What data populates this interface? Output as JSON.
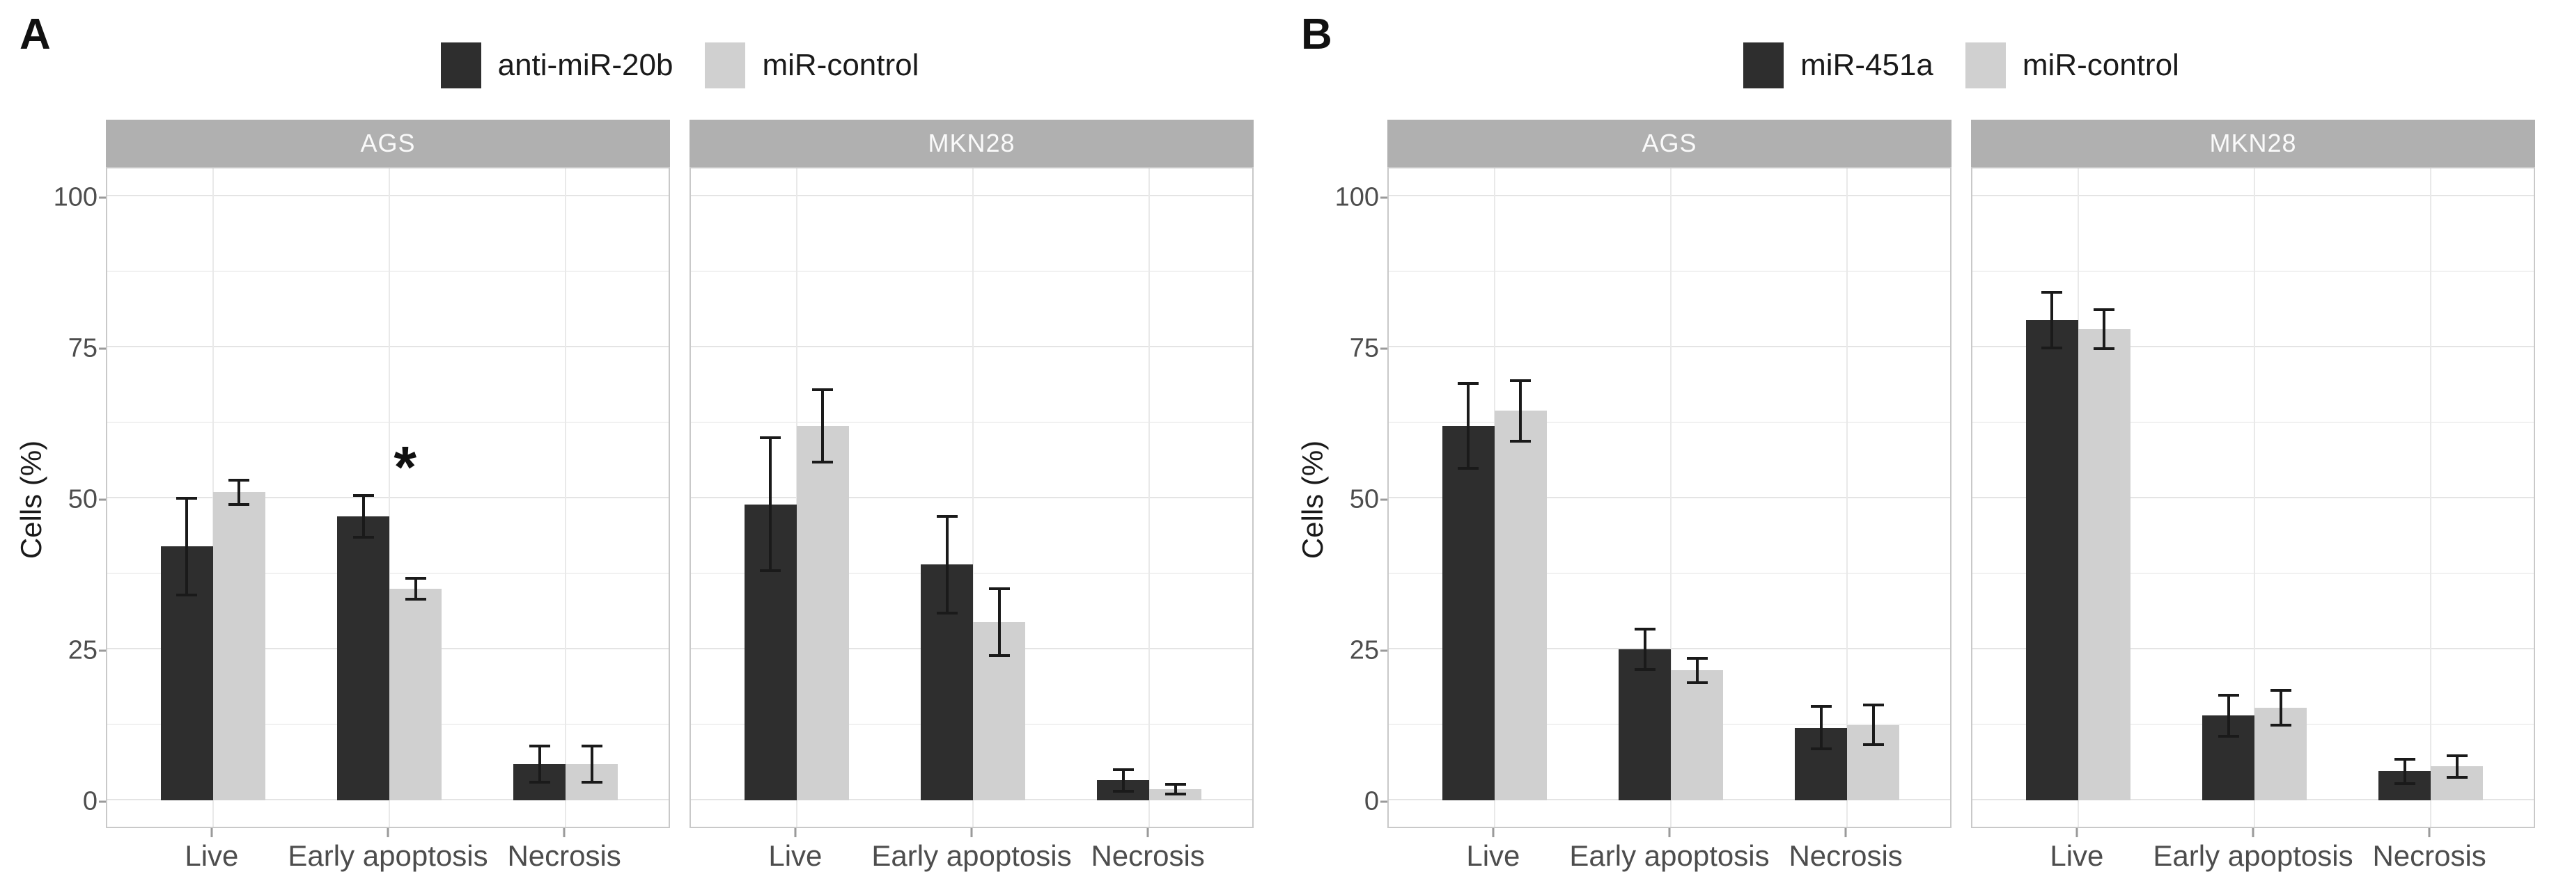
{
  "style": {
    "dark_fill": "#2e2e2e",
    "light_fill": "#d0d0d0",
    "strip_bg": "#b0b0b0",
    "strip_text": "#fafafa",
    "grid_major": "#e4e4e4",
    "grid_minor": "#f1f1f1",
    "panel_border": "#c9c9c9",
    "axis_text": "#4d4d4d",
    "error_color": "#1a1a1a",
    "background": "#ffffff"
  },
  "chart_data": [
    {
      "type": "bar",
      "panel_label": "A",
      "ylabel": "Cells (%)",
      "ylim": [
        0,
        105
      ],
      "yticks": [
        0,
        25,
        50,
        75,
        100
      ],
      "yticks_minor": [
        12.5,
        37.5,
        62.5,
        87.5
      ],
      "grid": true,
      "legend_position": "top-center",
      "error_bars": true,
      "categories": [
        "Live",
        "Early apoptosis",
        "Necrosis"
      ],
      "legend": [
        {
          "label": "anti-miR-20b",
          "color": "#2e2e2e"
        },
        {
          "label": "miR-control",
          "color": "#d0d0d0"
        }
      ],
      "facets": [
        {
          "name": "AGS",
          "series": [
            {
              "name": "anti-miR-20b",
              "color": "#2e2e2e",
              "values": [
                42,
                47,
                6
              ],
              "errors": [
                8,
                3.5,
                3
              ]
            },
            {
              "name": "miR-control",
              "color": "#d0d0d0",
              "values": [
                51,
                35,
                6
              ],
              "errors": [
                2,
                1.7,
                3
              ]
            }
          ],
          "annotations": [
            {
              "text": "*",
              "category_index": 1,
              "y": 57,
              "x_offset_frac": 0.028
            }
          ]
        },
        {
          "name": "MKN28",
          "series": [
            {
              "name": "anti-miR-20b",
              "color": "#2e2e2e",
              "values": [
                49,
                39,
                3.3
              ],
              "errors": [
                11,
                8,
                1.8
              ]
            },
            {
              "name": "miR-control",
              "color": "#d0d0d0",
              "values": [
                62,
                29.5,
                1.8
              ],
              "errors": [
                6,
                5.5,
                0.8
              ]
            }
          ],
          "annotations": []
        }
      ]
    },
    {
      "type": "bar",
      "panel_label": "B",
      "ylabel": "Cells (%)",
      "ylim": [
        0,
        105
      ],
      "yticks": [
        0,
        25,
        50,
        75,
        100
      ],
      "yticks_minor": [
        12.5,
        37.5,
        62.5,
        87.5
      ],
      "grid": true,
      "legend_position": "top-center",
      "error_bars": true,
      "categories": [
        "Live",
        "Early apoptosis",
        "Necrosis"
      ],
      "legend": [
        {
          "label": "miR-451a",
          "color": "#2e2e2e"
        },
        {
          "label": "miR-control",
          "color": "#d0d0d0"
        }
      ],
      "facets": [
        {
          "name": "AGS",
          "series": [
            {
              "name": "miR-451a",
              "color": "#2e2e2e",
              "values": [
                62,
                25,
                12
              ],
              "errors": [
                7,
                3.3,
                3.5
              ]
            },
            {
              "name": "miR-control",
              "color": "#d0d0d0",
              "values": [
                64.5,
                21.5,
                12.5
              ],
              "errors": [
                5,
                2,
                3.3
              ]
            }
          ],
          "annotations": []
        },
        {
          "name": "MKN28",
          "series": [
            {
              "name": "miR-451a",
              "color": "#2e2e2e",
              "values": [
                79.5,
                14,
                4.8
              ],
              "errors": [
                4.6,
                3.4,
                2
              ]
            },
            {
              "name": "miR-control",
              "color": "#d0d0d0",
              "values": [
                78,
                15.3,
                5.6
              ],
              "errors": [
                3.2,
                2.9,
                1.8
              ]
            }
          ],
          "annotations": []
        }
      ]
    }
  ]
}
